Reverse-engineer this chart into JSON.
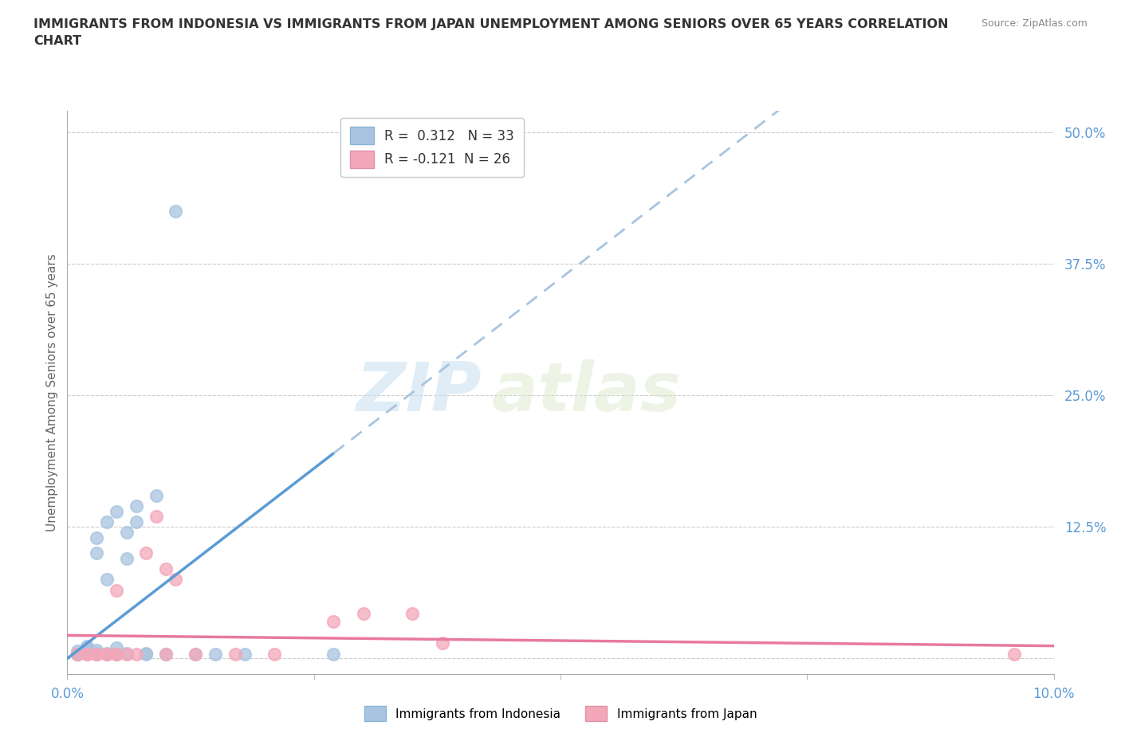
{
  "title": "IMMIGRANTS FROM INDONESIA VS IMMIGRANTS FROM JAPAN UNEMPLOYMENT AMONG SENIORS OVER 65 YEARS CORRELATION\nCHART",
  "source": "Source: ZipAtlas.com",
  "ylabel": "Unemployment Among Seniors over 65 years",
  "xlim": [
    0.0,
    0.1
  ],
  "ylim": [
    -0.015,
    0.52
  ],
  "ytick_right": [
    0.0,
    0.125,
    0.25,
    0.375,
    0.5
  ],
  "ytick_right_labels": [
    "",
    "12.5%",
    "25.0%",
    "37.5%",
    "50.0%"
  ],
  "indonesia_color": "#a8c4e0",
  "japan_color": "#f4a7b9",
  "indonesia_line_color": "#5b9bd5",
  "japan_line_color": "#e8799f",
  "indonesia_dash_color": "#a8c4e0",
  "R_indonesia": 0.312,
  "N_indonesia": 33,
  "R_japan": -0.121,
  "N_japan": 26,
  "watermark_zip": "ZIP",
  "watermark_atlas": "atlas",
  "indonesia_scatter_x": [
    0.001,
    0.001,
    0.001,
    0.001,
    0.002,
    0.002,
    0.002,
    0.002,
    0.003,
    0.003,
    0.003,
    0.003,
    0.003,
    0.004,
    0.004,
    0.004,
    0.005,
    0.005,
    0.005,
    0.006,
    0.006,
    0.006,
    0.007,
    0.007,
    0.008,
    0.008,
    0.009,
    0.01,
    0.011,
    0.013,
    0.015,
    0.018,
    0.027
  ],
  "indonesia_scatter_y": [
    0.004,
    0.004,
    0.004,
    0.007,
    0.005,
    0.008,
    0.01,
    0.012,
    0.004,
    0.005,
    0.008,
    0.1,
    0.115,
    0.005,
    0.075,
    0.13,
    0.004,
    0.01,
    0.14,
    0.005,
    0.095,
    0.12,
    0.13,
    0.145,
    0.004,
    0.005,
    0.155,
    0.004,
    0.425,
    0.004,
    0.004,
    0.004,
    0.004
  ],
  "japan_scatter_x": [
    0.001,
    0.002,
    0.002,
    0.003,
    0.003,
    0.004,
    0.004,
    0.004,
    0.005,
    0.005,
    0.005,
    0.006,
    0.007,
    0.008,
    0.009,
    0.01,
    0.01,
    0.011,
    0.013,
    0.017,
    0.021,
    0.027,
    0.03,
    0.035,
    0.038,
    0.096
  ],
  "japan_scatter_y": [
    0.004,
    0.004,
    0.004,
    0.004,
    0.004,
    0.004,
    0.004,
    0.004,
    0.004,
    0.004,
    0.065,
    0.004,
    0.004,
    0.1,
    0.135,
    0.004,
    0.085,
    0.075,
    0.004,
    0.004,
    0.004,
    0.035,
    0.043,
    0.043,
    0.015,
    0.004
  ],
  "indo_line_x0": 0.0,
  "indo_line_y0": 0.0,
  "indo_line_x1": 0.027,
  "indo_line_y1": 0.195,
  "jp_line_x0": 0.0,
  "jp_line_y0": 0.022,
  "jp_line_x1": 0.1,
  "jp_line_y1": 0.012
}
